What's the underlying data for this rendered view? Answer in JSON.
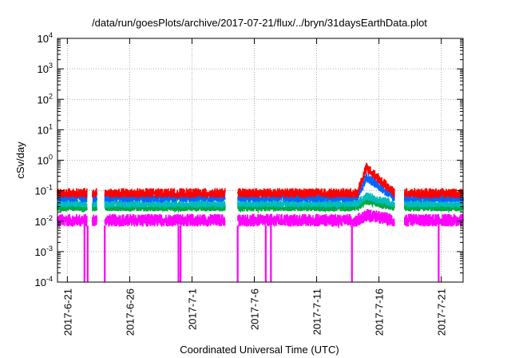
{
  "chart_data": {
    "type": "line",
    "title": "/data/run/goesPlots/archive/2017-07-21/flux/../bryn/31daysEarthData.plot",
    "xlabel": "Coordinated Universal Time (UTC)",
    "ylabel": "cSv/day",
    "y_scale": "log",
    "ylim": [
      0.0001,
      10000
    ],
    "xlim": [
      "2017-06-20T05:00",
      "2017-07-22T18:00"
    ],
    "x_ticks": [
      "2017-6-21",
      "2017-6-26",
      "2017-7-1",
      "2017-7-6",
      "2017-7-11",
      "2017-7-16",
      "2017-7-21"
    ],
    "y_ticks": [
      {
        "value": 0.0001,
        "base": "10",
        "exp": "-4"
      },
      {
        "value": 0.001,
        "base": "10",
        "exp": "-3"
      },
      {
        "value": 0.01,
        "base": "10",
        "exp": "-2"
      },
      {
        "value": 0.1,
        "base": "10",
        "exp": "-1"
      },
      {
        "value": 1,
        "base": "10",
        "exp": "0"
      },
      {
        "value": 10,
        "base": "10",
        "exp": "1"
      },
      {
        "value": 100,
        "base": "10",
        "exp": "2"
      },
      {
        "value": 1000,
        "base": "10",
        "exp": "3"
      },
      {
        "value": 10000,
        "base": "10",
        "exp": "4"
      }
    ],
    "grid": true,
    "gaps": [
      {
        "start": "2017-06-22T14:00",
        "end": "2017-06-23T00:00"
      },
      {
        "start": "2017-06-23T09:00",
        "end": "2017-06-24T00:00"
      },
      {
        "start": "2017-07-03T16:00",
        "end": "2017-07-04T16:00"
      },
      {
        "start": "2017-07-17T06:00",
        "end": "2017-07-18T01:00"
      }
    ],
    "dips": [
      "2017-06-22T09:00",
      "2017-06-22T15:00",
      "2017-06-24T00:00",
      "2017-06-29T22:00",
      "2017-06-30T02:00",
      "2017-07-04T16:00",
      "2017-07-06T22:00",
      "2017-07-07T08:00",
      "2017-07-13T20:00",
      "2017-07-20T19:00"
    ],
    "series": [
      {
        "color": "#ff0000",
        "baseline": 0.09,
        "spread": 0.35,
        "flare_peak": 0.62
      },
      {
        "color": "#0066ff",
        "baseline": 0.065,
        "spread": 0.35,
        "flare_peak": 0.3
      },
      {
        "color": "#00bbbb",
        "baseline": 0.04,
        "spread": 0.3,
        "flare_peak": 0.07
      },
      {
        "color": "#00aa44",
        "baseline": 0.03,
        "spread": 0.3,
        "flare_peak": 0.05
      },
      {
        "color": "#ff00ff",
        "baseline": 0.012,
        "spread": 0.45,
        "flare_peak": 0.018
      }
    ],
    "flare": {
      "start": "2017-07-14T06:00",
      "peak": "2017-07-15T00:00",
      "end": "2017-07-17T06:00"
    }
  }
}
